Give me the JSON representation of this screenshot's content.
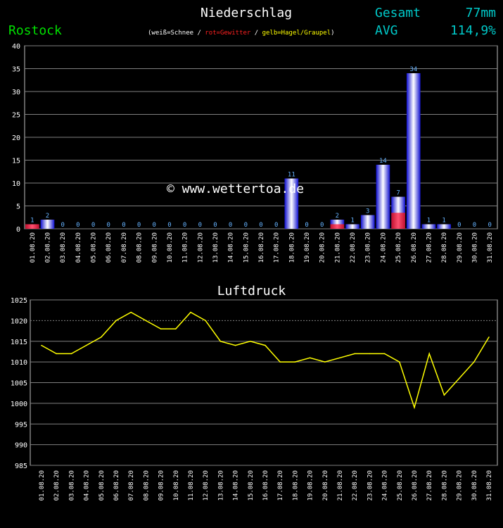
{
  "header": {
    "title": "Niederschlag",
    "station": "Rostock",
    "legend_snow": "weiß=Schnee",
    "legend_sep1": " / ",
    "legend_thunder": "rot=Gewitter",
    "legend_sep2": " / ",
    "legend_hail": "gelb=Hagel/Graupel",
    "legend_open": "(",
    "legend_close": ")",
    "total_label": "Gesamt",
    "total_value": "77mm",
    "avg_label": "AVG",
    "avg_value": "114,9%"
  },
  "watermark": "© www.wettertoa.de",
  "colors": {
    "background": "#000000",
    "bar_blue": "#2020f0",
    "bar_thunder": "#d0103a",
    "value_label": "#66b3ff",
    "pressure_line": "#ffff00",
    "grid": "#808080",
    "station": "#00e000",
    "accent": "#00c8c8"
  },
  "chart_data": [
    {
      "type": "bar",
      "title": "Niederschlag",
      "categories": [
        "01.08.20",
        "02.08.20",
        "03.08.20",
        "04.08.20",
        "05.08.20",
        "06.08.20",
        "07.08.20",
        "08.08.20",
        "09.08.20",
        "10.08.20",
        "11.08.20",
        "12.08.20",
        "13.08.20",
        "14.08.20",
        "15.08.20",
        "16.08.20",
        "17.08.20",
        "18.08.20",
        "19.08.20",
        "20.08.20",
        "21.08.20",
        "22.08.20",
        "23.08.20",
        "24.08.20",
        "25.08.20",
        "26.08.20",
        "27.08.20",
        "28.08.20",
        "29.08.20",
        "30.08.20",
        "31.08.20"
      ],
      "values": [
        1,
        2,
        0,
        0,
        0,
        0,
        0,
        0,
        0,
        0,
        0,
        0,
        0,
        0,
        0,
        0,
        0,
        11,
        0,
        0,
        2,
        1,
        3,
        14,
        7,
        34,
        1,
        1,
        0,
        0,
        0
      ],
      "thunder": [
        1,
        0,
        0,
        0,
        0,
        0,
        0,
        0,
        0,
        0,
        0,
        0,
        0,
        0,
        0,
        0,
        0,
        0,
        0,
        0,
        1,
        0,
        0,
        0,
        3.5,
        0,
        0,
        0,
        0,
        0,
        0
      ],
      "ylim": [
        0,
        40
      ],
      "yticks": [
        0,
        5,
        10,
        15,
        20,
        25,
        30,
        35,
        40
      ],
      "grid": true
    },
    {
      "type": "line",
      "title": "Luftdruck",
      "categories": [
        "01.08.20",
        "02.08.20",
        "03.08.20",
        "04.08.20",
        "05.08.20",
        "06.08.20",
        "07.08.20",
        "08.08.20",
        "09.08.20",
        "10.08.20",
        "11.08.20",
        "12.08.20",
        "13.08.20",
        "14.08.20",
        "15.08.20",
        "16.08.20",
        "17.08.20",
        "18.08.20",
        "19.08.20",
        "20.08.20",
        "21.08.20",
        "22.08.20",
        "23.08.20",
        "24.08.20",
        "25.08.20",
        "26.08.20",
        "27.08.20",
        "28.08.20",
        "29.08.20",
        "30.08.20",
        "31.08.20"
      ],
      "values": [
        1014,
        1012,
        1012,
        1014,
        1016,
        1020,
        1022,
        1020,
        1018,
        1018,
        1022,
        1020,
        1015,
        1014,
        1015,
        1014,
        1010,
        1010,
        1011,
        1010,
        1011,
        1012,
        1012,
        1012,
        1010,
        999,
        1012,
        1002,
        1006,
        1010,
        1016
      ],
      "ylim": [
        985,
        1025
      ],
      "yticks": [
        985,
        990,
        995,
        1000,
        1005,
        1010,
        1015,
        1020,
        1025
      ],
      "grid": true
    }
  ]
}
